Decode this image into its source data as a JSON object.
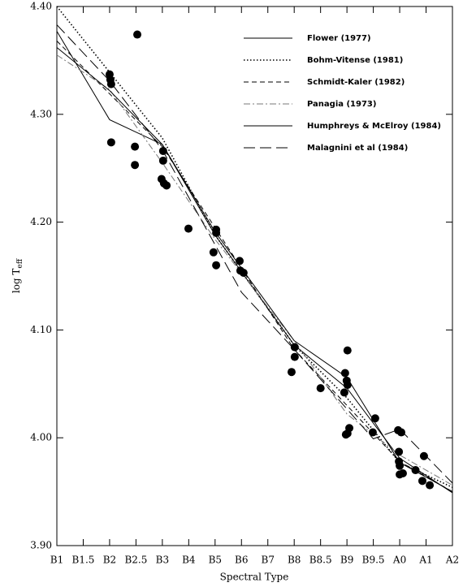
{
  "chart_data": {
    "type": "line",
    "x_label": "Spectral Type",
    "y_label": "log T",
    "y_label_subscript": "eff",
    "xlim": [
      0,
      15
    ],
    "ylim": [
      3.9,
      4.4
    ],
    "xticks": [
      {
        "value": 0,
        "label": "B1"
      },
      {
        "value": 1,
        "label": "B1.5"
      },
      {
        "value": 2,
        "label": "B2"
      },
      {
        "value": 3,
        "label": "B2.5"
      },
      {
        "value": 4,
        "label": "B3"
      },
      {
        "value": 5,
        "label": "B4"
      },
      {
        "value": 6,
        "label": "B5"
      },
      {
        "value": 7,
        "label": "B6"
      },
      {
        "value": 8,
        "label": "B7"
      },
      {
        "value": 9,
        "label": "B8"
      },
      {
        "value": 10,
        "label": "B8.5"
      },
      {
        "value": 11,
        "label": "B9"
      },
      {
        "value": 12,
        "label": "B9.5"
      },
      {
        "value": 13,
        "label": "A0"
      },
      {
        "value": 14,
        "label": "A1"
      },
      {
        "value": 15,
        "label": "A2"
      }
    ],
    "yticks": [
      {
        "value": 3.9,
        "label": "3.90"
      },
      {
        "value": 4.0,
        "label": "4.00"
      },
      {
        "value": 4.1,
        "label": "4.10"
      },
      {
        "value": 4.2,
        "label": "4.20"
      },
      {
        "value": 4.3,
        "label": "4.30"
      },
      {
        "value": 4.4,
        "label": "4.40"
      }
    ],
    "series": [
      {
        "name": "Flower (1977)",
        "color": "#000000",
        "dash": "solid",
        "x": [
          0,
          2,
          4,
          6,
          9,
          11,
          13,
          15
        ],
        "values": [
          4.377,
          4.295,
          4.272,
          4.188,
          4.086,
          4.046,
          3.981,
          3.949
        ]
      },
      {
        "name": "Bohm-Vitense (1981)",
        "color": "#000000",
        "dash": "dotted",
        "x": [
          0,
          4,
          6,
          9,
          11,
          13,
          15
        ],
        "values": [
          4.4,
          4.278,
          4.188,
          4.086,
          4.037,
          3.977,
          3.954
        ]
      },
      {
        "name": "Schmidt-Kaler (1982)",
        "color": "#000000",
        "dash": "dashed",
        "x": [
          0,
          4,
          9,
          11,
          13,
          15
        ],
        "values": [
          4.368,
          4.27,
          4.082,
          4.03,
          3.978,
          3.95
        ]
      },
      {
        "name": "Panagia (1973)",
        "color": "#777777",
        "dash": "dashdot",
        "x": [
          0,
          2,
          4,
          6,
          9,
          11,
          13,
          15
        ],
        "values": [
          4.355,
          4.323,
          4.255,
          4.184,
          4.09,
          4.022,
          3.984,
          3.956
        ]
      },
      {
        "name": "Humphreys & McElroy (1984)",
        "color": "#000000",
        "dash": "solid",
        "x": [
          0,
          2,
          4,
          6,
          9,
          11,
          13,
          15
        ],
        "values": [
          4.362,
          4.322,
          4.272,
          4.191,
          4.09,
          4.056,
          3.977,
          3.95
        ]
      },
      {
        "name": "Malagnini et al (1984)",
        "color": "#000000",
        "dash": "longdash",
        "x": [
          0,
          2,
          4,
          7,
          9,
          12,
          13,
          15
        ],
        "values": [
          4.383,
          4.331,
          4.267,
          4.135,
          4.082,
          3.999,
          4.008,
          3.958
        ]
      },
      {
        "color": "#000000",
        "marker": "circle",
        "x": [
          3.05,
          2.0,
          2.03,
          2.06,
          2.06,
          2.96,
          2.96,
          4.03,
          4.03,
          3.97,
          4.06,
          4.16,
          4.99,
          5.94,
          6.04,
          6.04,
          6.04,
          6.93,
          6.96,
          7.08,
          8.9,
          9.02,
          9.02,
          10.0,
          10.93,
          10.99,
          11.02,
          10.9,
          11.02,
          11.02,
          11.09,
          10.96,
          12.07,
          11.98,
          12.97,
          12.97,
          13.0,
          13.06,
          12.94,
          13.0,
          13.12,
          13.6,
          13.92,
          13.86,
          14.14
        ],
        "values": [
          4.374,
          4.337,
          4.332,
          4.328,
          4.274,
          4.27,
          4.253,
          4.266,
          4.257,
          4.24,
          4.236,
          4.234,
          4.194,
          4.172,
          4.19,
          4.193,
          4.16,
          4.164,
          4.155,
          4.153,
          4.061,
          4.084,
          4.075,
          4.046,
          4.06,
          4.053,
          4.049,
          4.042,
          4.081,
          4.004,
          4.009,
          4.003,
          4.018,
          4.005,
          3.987,
          3.978,
          3.974,
          4.005,
          4.007,
          3.966,
          3.967,
          3.97,
          3.983,
          3.96,
          3.956
        ]
      }
    ]
  }
}
